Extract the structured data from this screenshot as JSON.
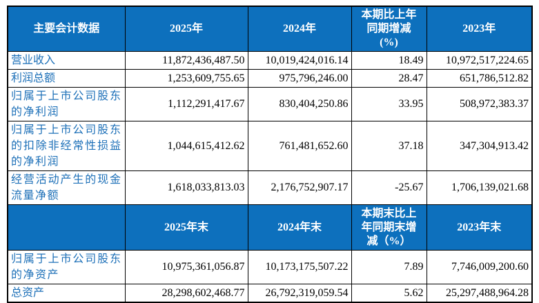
{
  "colors": {
    "header_bg": "#0d70bd",
    "header_text": "#ffffff",
    "label_text": "#1d70b8",
    "value_text": "#000000",
    "border": "#000000"
  },
  "table": {
    "header_period": {
      "metrics": "主要会计数据",
      "y2025": "2025年",
      "y2024": "2024年",
      "change": "本期比上年\n同期增减\n(%)",
      "y2023": "2023年"
    },
    "rows_period": [
      {
        "label": "营业收入",
        "y2025": "11,872,436,487.50",
        "y2024": "10,019,424,016.14",
        "change": "18.49",
        "y2023": "10,972,517,224.65"
      },
      {
        "label": "利润总额",
        "y2025": "1,253,609,755.65",
        "y2024": "975,796,246.00",
        "change": "28.47",
        "y2023": "651,786,512.82"
      },
      {
        "label": "归属于上市公司股东的净利润",
        "y2025": "1,112,291,417.67",
        "y2024": "830,404,250.86",
        "change": "33.95",
        "y2023": "508,972,383.37"
      },
      {
        "label": "归属于上市公司股东的扣除非经常性损益的净利润",
        "y2025": "1,044,615,412.62",
        "y2024": "761,481,652.60",
        "change": "37.18",
        "y2023": "347,304,913.42"
      },
      {
        "label": "经营活动产生的现金流量净额",
        "y2025": "1,618,033,813.03",
        "y2024": "2,176,752,907.17",
        "change": "-25.67",
        "y2023": "1,706,139,021.68"
      }
    ],
    "header_eop": {
      "metrics": "",
      "y2025": "2025年末",
      "y2024": "2024年末",
      "change": "本期末比上\n年同期末增\n减（%）",
      "y2023": "2023年末"
    },
    "rows_eop": [
      {
        "label": "归属于上市公司股东的净资产",
        "y2025": "10,975,361,056.87",
        "y2024": "10,173,175,507.22",
        "change": "7.89",
        "y2023": "7,746,009,200.60"
      },
      {
        "label": "总资产",
        "y2025": "28,298,602,468.77",
        "y2024": "26,792,319,059.54",
        "change": "5.62",
        "y2023": "25,297,488,964.28"
      }
    ]
  }
}
